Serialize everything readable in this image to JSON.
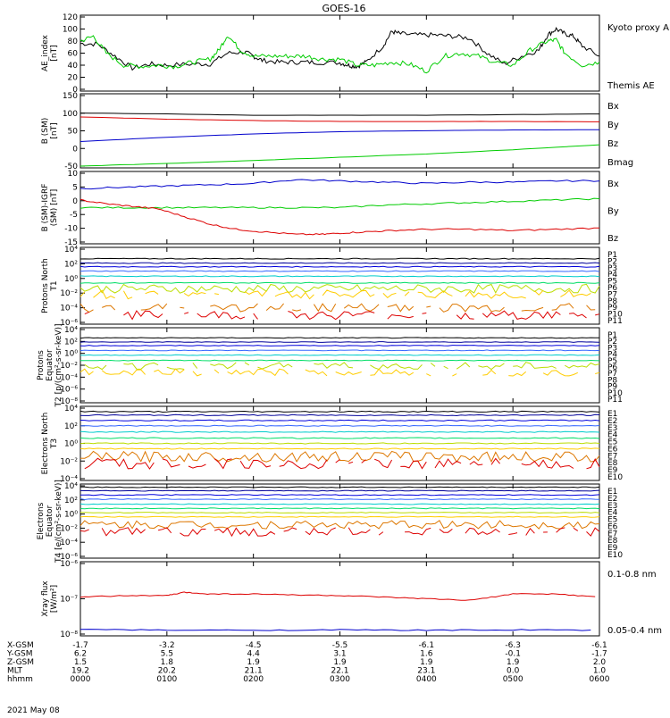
{
  "title": "GOES-16",
  "date_label": "2021 May 08",
  "colors": {
    "black": "#000000",
    "red": "#dd0000",
    "green": "#00cc00",
    "blue": "#0000cc"
  },
  "chart_data": [
    {
      "type": "line",
      "ylabel": "AE_index [nT]",
      "yticks": [
        "120",
        "100",
        "80",
        "60",
        "40",
        "20",
        "0"
      ],
      "ylim": [
        0,
        120
      ],
      "legend": [
        {
          "name": "Kyoto proxy AE",
          "color": "#00cc00"
        },
        {
          "name": "Themis AE",
          "color": "#000000"
        }
      ],
      "series": [
        {
          "name": "Themis AE",
          "color": "#000000",
          "x": [
            0,
            0.2,
            0.4,
            0.6,
            0.8,
            1.0,
            1.3,
            1.5,
            1.7,
            1.9,
            2.0,
            2.1,
            2.3,
            2.5,
            2.7,
            3.0,
            3.1,
            3.2,
            3.3,
            3.5,
            3.6,
            3.7,
            3.9,
            4.1,
            4.3,
            4.5,
            4.7,
            4.9,
            5.1,
            5.3,
            5.4,
            5.5,
            5.6,
            5.7,
            5.8,
            6.0
          ],
          "y": [
            76,
            75,
            55,
            35,
            42,
            40,
            42,
            42,
            60,
            62,
            55,
            48,
            45,
            45,
            45,
            44,
            40,
            38,
            45,
            72,
            96,
            92,
            90,
            90,
            88,
            85,
            60,
            42,
            55,
            65,
            90,
            100,
            92,
            88,
            72,
            55
          ]
        },
        {
          "name": "Kyoto proxy AE",
          "color": "#00cc00",
          "x": [
            0,
            0.15,
            0.3,
            0.5,
            0.7,
            0.9,
            1.1,
            1.3,
            1.5,
            1.6,
            1.7,
            1.85,
            2.0,
            2.2,
            2.4,
            2.6,
            2.8,
            3.0,
            3.2,
            3.4,
            3.6,
            3.8,
            4.0,
            4.2,
            4.4,
            4.6,
            4.8,
            5.0,
            5.2,
            5.4,
            5.5,
            5.6,
            5.8,
            6.0
          ],
          "y": [
            80,
            88,
            60,
            40,
            38,
            40,
            38,
            45,
            50,
            65,
            90,
            65,
            55,
            55,
            55,
            55,
            50,
            50,
            40,
            40,
            45,
            42,
            30,
            55,
            60,
            55,
            45,
            40,
            65,
            80,
            82,
            60,
            40,
            45
          ]
        }
      ]
    },
    {
      "type": "line",
      "ylabel": "B (SM) [nT]",
      "yticks": [
        "150",
        "100",
        "50",
        "0",
        "-50"
      ],
      "ylim": [
        -55,
        160
      ],
      "legend": [
        {
          "name": "Bx",
          "color": "#0000cc"
        },
        {
          "name": "By",
          "color": "#00cc00"
        },
        {
          "name": "Bz",
          "color": "#dd0000"
        },
        {
          "name": "Bmag",
          "color": "#000000"
        }
      ],
      "series": [
        {
          "name": "Bmag",
          "color": "#000000",
          "x": [
            0,
            1,
            2,
            3,
            4,
            5,
            6
          ],
          "y": [
            107,
            104,
            100,
            100,
            100,
            102,
            104
          ]
        },
        {
          "name": "Bz",
          "color": "#dd0000",
          "x": [
            0,
            1,
            2,
            3,
            4,
            5,
            6
          ],
          "y": [
            95,
            88,
            84,
            81,
            81,
            81,
            80
          ]
        },
        {
          "name": "Bx",
          "color": "#0000cc",
          "x": [
            0,
            1,
            2,
            3,
            4,
            5,
            6
          ],
          "y": [
            20,
            33,
            43,
            50,
            53,
            55,
            56
          ]
        },
        {
          "name": "By",
          "color": "#00cc00",
          "x": [
            0,
            1,
            2,
            3,
            4,
            5,
            6
          ],
          "y": [
            -55,
            -47,
            -38,
            -28,
            -18,
            -5,
            10
          ]
        }
      ]
    },
    {
      "type": "line",
      "ylabel": "B (SM)-IGRF (SM) [nT]",
      "yticks": [
        "10",
        "5",
        "0",
        "-5",
        "-10",
        "-15"
      ],
      "ylim": [
        -16,
        11
      ],
      "legend": [
        {
          "name": "Bx",
          "color": "#0000cc"
        },
        {
          "name": "By",
          "color": "#00cc00"
        },
        {
          "name": "Bz",
          "color": "#dd0000"
        }
      ],
      "series": [
        {
          "name": "Bx",
          "color": "#0000cc",
          "x": [
            0,
            0.5,
            1,
            1.5,
            2,
            2.5,
            3,
            3.5,
            4,
            4.5,
            5,
            5.5,
            6
          ],
          "y": [
            5,
            5.5,
            6,
            6.5,
            7,
            8.5,
            8,
            7.5,
            7,
            7.5,
            7.5,
            8,
            8
          ]
        },
        {
          "name": "By",
          "color": "#00cc00",
          "x": [
            0,
            0.5,
            1,
            1.5,
            2,
            2.5,
            3,
            3.5,
            4,
            4.5,
            5,
            5.5,
            6
          ],
          "y": [
            -2.5,
            -2.5,
            -2.5,
            -2.5,
            -2.5,
            -2.5,
            -2.5,
            -1.5,
            -1,
            -0.5,
            0,
            0.5,
            1
          ]
        },
        {
          "name": "Bz",
          "color": "#dd0000",
          "x": [
            0,
            0.3,
            0.6,
            0.9,
            1.2,
            1.5,
            1.8,
            2.1,
            2.5,
            2.8,
            3.0,
            3.3,
            3.6,
            4.0,
            4.5,
            5.0,
            5.5,
            6.0
          ],
          "y": [
            0.5,
            -1,
            -2,
            -3,
            -6,
            -9,
            -11,
            -12,
            -13,
            -13,
            -12.5,
            -12,
            -11.5,
            -11,
            -11,
            -11.5,
            -11,
            -10.5
          ]
        }
      ]
    },
    {
      "type": "line",
      "log": true,
      "ylabel": "Protons North T1",
      "yticks": [
        "10⁴",
        "10²",
        "10⁰",
        "10⁻²",
        "10⁻⁴",
        "10⁻⁶"
      ],
      "legend": [
        {
          "name": "P1",
          "color": "#000000"
        },
        {
          "name": "P2",
          "color": "#000099"
        },
        {
          "name": "P3",
          "color": "#0000dd"
        },
        {
          "name": "P4",
          "color": "#3366ff"
        },
        {
          "name": "P5",
          "color": "#00cccc"
        },
        {
          "name": "P6",
          "color": "#00dd66"
        },
        {
          "name": "P7",
          "color": "#bbdd00"
        },
        {
          "name": "P8",
          "color": "#ffcc00"
        },
        {
          "name": "P9",
          "color": "#dd7700"
        },
        {
          "name": "P10",
          "color": "#dd0000"
        },
        {
          "name": "P11",
          "color": "#aa0000"
        }
      ],
      "series_log10": [
        2.7,
        2.1,
        1.6,
        1.0,
        0.3,
        -0.6,
        -1.4,
        -2.2,
        -4.0,
        -5.0,
        -6.5
      ]
    },
    {
      "type": "line",
      "log": true,
      "ylabel": "Protons Equator T2 [p/(cm²-s-sr-keV)]",
      "yticks": [
        "10⁴",
        "10²",
        "10⁰",
        "10⁻²",
        "10⁻⁴",
        "10⁻⁶",
        "10⁻⁸"
      ],
      "legend": [
        {
          "name": "P1",
          "color": "#000000"
        },
        {
          "name": "P2",
          "color": "#000099"
        },
        {
          "name": "P3",
          "color": "#0000dd"
        },
        {
          "name": "P4",
          "color": "#3366ff"
        },
        {
          "name": "P5",
          "color": "#00cccc"
        },
        {
          "name": "P6",
          "color": "#00dd66"
        },
        {
          "name": "P7",
          "color": "#bbdd00"
        },
        {
          "name": "P8",
          "color": "#ffcc00"
        },
        {
          "name": "P9",
          "color": "#dd7700"
        },
        {
          "name": "P10",
          "color": "#dd0000"
        },
        {
          "name": "P11",
          "color": "#aa0000"
        }
      ],
      "series_log10": [
        2.6,
        1.9,
        1.3,
        0.5,
        -0.3,
        -1.2,
        -2.1,
        -3.2,
        -9,
        -9,
        -9
      ]
    },
    {
      "type": "line",
      "log": true,
      "ylabel": "Electrons North T3",
      "yticks": [
        "10⁴",
        "10²",
        "10⁰",
        "10⁻²",
        "10⁻⁴"
      ],
      "legend": [
        {
          "name": "E1",
          "color": "#000000"
        },
        {
          "name": "E2",
          "color": "#000099"
        },
        {
          "name": "E3",
          "color": "#0000dd"
        },
        {
          "name": "E4",
          "color": "#3366ff"
        },
        {
          "name": "E5",
          "color": "#00cccc"
        },
        {
          "name": "E6",
          "color": "#00dd66"
        },
        {
          "name": "E7",
          "color": "#bbdd00"
        },
        {
          "name": "E8",
          "color": "#ffcc00"
        },
        {
          "name": "E9",
          "color": "#dd7700"
        },
        {
          "name": "E10",
          "color": "#dd0000"
        }
      ],
      "series_log10": [
        3.6,
        3.2,
        2.6,
        2.0,
        1.3,
        0.6,
        0.0,
        -0.6,
        -1.5,
        -2.3
      ]
    },
    {
      "type": "line",
      "log": true,
      "ylabel": "Electrons Equator T4 [e/(cm²-s-sr-keV)]",
      "yticks": [
        "10⁴",
        "10²",
        "10⁰",
        "10⁻²",
        "10⁻⁴",
        "10⁻⁶"
      ],
      "legend": [
        {
          "name": "E1",
          "color": "#000000"
        },
        {
          "name": "E2",
          "color": "#000099"
        },
        {
          "name": "E3",
          "color": "#0000dd"
        },
        {
          "name": "E4",
          "color": "#3366ff"
        },
        {
          "name": "E5",
          "color": "#00cccc"
        },
        {
          "name": "E6",
          "color": "#00dd66"
        },
        {
          "name": "E7",
          "color": "#bbdd00"
        },
        {
          "name": "E8",
          "color": "#ffcc00"
        },
        {
          "name": "E9",
          "color": "#dd7700"
        },
        {
          "name": "E10",
          "color": "#dd0000"
        }
      ],
      "series_log10": [
        3.8,
        3.3,
        2.7,
        2.1,
        1.4,
        0.8,
        0.2,
        -0.4,
        -1.5,
        -2.5
      ]
    },
    {
      "type": "line",
      "log": true,
      "ylabel": "Xray flux [W/m²]",
      "yticks": [
        "10⁻⁶",
        "10⁻⁷",
        "10⁻⁸"
      ],
      "legend": [
        {
          "name": "0.1-0.8 nm",
          "color": "#dd0000"
        },
        {
          "name": "0.05-0.4 nm",
          "color": "#0000cc"
        }
      ],
      "series": [
        {
          "name": "0.1-0.8 nm",
          "color": "#dd0000",
          "x": [
            0,
            0.5,
            1,
            1.2,
            1.5,
            2,
            2.5,
            3,
            3.5,
            4,
            4.5,
            5,
            5.5,
            6
          ],
          "y_log10": [
            -6.95,
            -6.9,
            -6.9,
            -6.8,
            -6.85,
            -6.85,
            -6.88,
            -6.9,
            -6.95,
            -7.0,
            -7.05,
            -6.85,
            -6.85,
            -6.95
          ]
        },
        {
          "name": "0.05-0.4 nm",
          "color": "#0000cc",
          "x": [
            0,
            1,
            2,
            3,
            4,
            5,
            6
          ],
          "y_log10": [
            -7.95,
            -7.98,
            -7.98,
            -7.97,
            -7.98,
            -7.97,
            -7.98
          ]
        }
      ]
    }
  ],
  "x_axis": {
    "row_labels": [
      "X-GSM",
      "Y-GSM",
      "Z-GSM",
      "MLT",
      "hhmm"
    ],
    "columns": [
      {
        "values": [
          "-1.7",
          "6.2",
          "1.5",
          "19.2",
          "0000"
        ]
      },
      {
        "values": [
          "-3.2",
          "5.5",
          "1.8",
          "20.2",
          "0100"
        ]
      },
      {
        "values": [
          "-4.5",
          "4.4",
          "1.9",
          "21.1",
          "0200"
        ]
      },
      {
        "values": [
          "-5.5",
          "3.1",
          "1.9",
          "22.1",
          "0300"
        ]
      },
      {
        "values": [
          "-6.1",
          "1.6",
          "1.9",
          "23.1",
          "0400"
        ]
      },
      {
        "values": [
          "-6.3",
          "-0.1",
          "1.9",
          "0.0",
          "0500"
        ]
      },
      {
        "values": [
          "-6.1",
          "-1.7",
          "2.0",
          "1.0",
          "0600"
        ]
      }
    ]
  }
}
